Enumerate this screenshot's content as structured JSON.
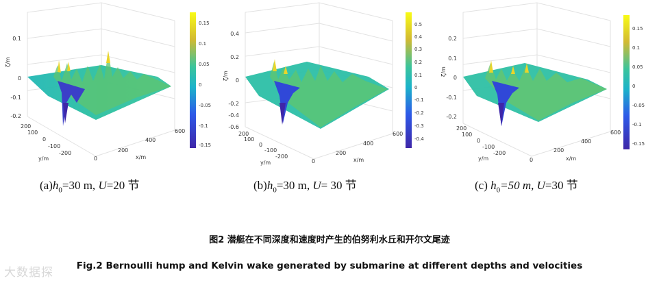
{
  "panels": [
    {
      "caption_label": "(a)",
      "caption_h": "h",
      "caption_sub": "0",
      "caption_mid": "=30 m, ",
      "caption_u": "U",
      "caption_end": "=20 节",
      "zlabel": "ζ/m",
      "xlabel": "x/m",
      "ylabel": "y/m",
      "zticks": [
        "0.1",
        "0",
        "-0.1",
        "-0.2"
      ],
      "yticks": [
        "200",
        "100",
        "0",
        "-100",
        "-200"
      ],
      "xticks": [
        "0",
        "200",
        "400",
        "600"
      ],
      "cbar_ticks": [
        "0.15",
        "0.1",
        "0.05",
        "0",
        "-0.05",
        "-0.1",
        "-0.15"
      ]
    },
    {
      "caption_label": "(b)",
      "caption_h": "h",
      "caption_sub": "0",
      "caption_mid": "=30 m, ",
      "caption_u": "U",
      "caption_end": "= 30 节",
      "zlabel": "ζ/m",
      "xlabel": "x/m",
      "ylabel": "y/m",
      "zticks": [
        "0.4",
        "0.2",
        "0",
        "-0.2",
        "-0.4",
        "-0.6"
      ],
      "yticks": [
        "200",
        "100",
        "0",
        "-100",
        "-200"
      ],
      "xticks": [
        "0",
        "200",
        "400",
        "600"
      ],
      "cbar_ticks": [
        "0.5",
        "0.4",
        "0.3",
        "0.2",
        "0.1",
        "0",
        "-0.1",
        "-0.2",
        "-0.3",
        "-0.4"
      ]
    },
    {
      "caption_label": "(c) ",
      "caption_h": "h",
      "caption_sub": "0",
      "caption_mid": "=50 m, ",
      "caption_u": "U",
      "caption_end": "=30 节",
      "zlabel": "ζ/m",
      "xlabel": "x/m",
      "ylabel": "y/m",
      "zticks": [
        "0.2",
        "0.1",
        "0",
        "-0.1",
        "-0.2"
      ],
      "yticks": [
        "200",
        "100",
        "0",
        "-100",
        "-200"
      ],
      "xticks": [
        "0",
        "200",
        "400",
        "600"
      ],
      "cbar_ticks": [
        "0.15",
        "0.1",
        "0.05",
        "0",
        "-0.05",
        "-0.1",
        "-0.15"
      ]
    }
  ],
  "figure_caption_cn": "图2 潜艇在不同深度和速度时产生的伯努利水丘和开尔文尾迹",
  "figure_caption_en": "Fig.2 Bernoulli hump and Kelvin wake generated by submarine at different depths and velocities",
  "watermark": "大数据探",
  "colormap": [
    "#3e26a8",
    "#2d5ae8",
    "#1e8fe0",
    "#1cb3c9",
    "#3cc49b",
    "#8ec75c",
    "#d2ba32",
    "#f9fb15"
  ]
}
